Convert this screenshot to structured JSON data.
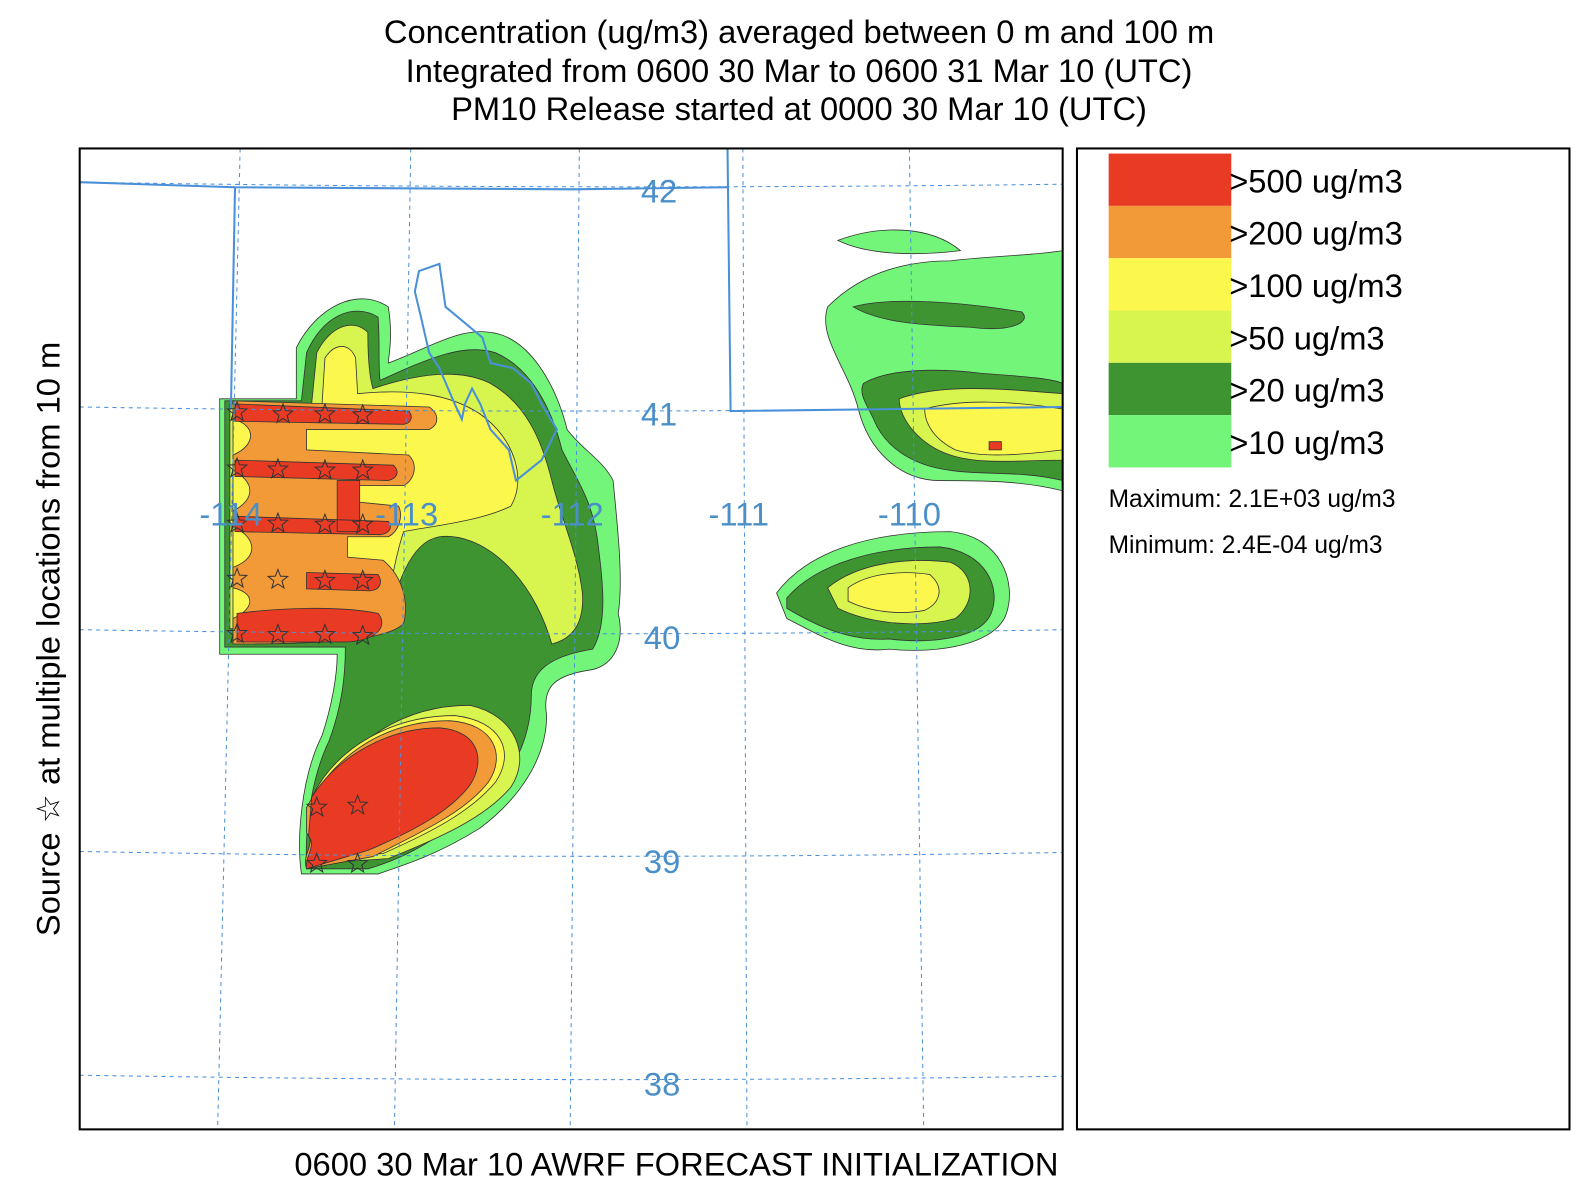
{
  "title": [
    "Concentration  (ug/m3) averaged between     0 m and   100 m",
    "Integrated from 0600 30 Mar to 0600 31 Mar 10 (UTC)",
    "PM10 Release started at 0000 30 Mar 10 (UTC)"
  ],
  "side_label": "Source ☆  at multiple locations   from   10 m",
  "footer": "0600 30 Mar 10 AWRF FORECAST INITIALIZATION",
  "map": {
    "latitude_labels": [
      "42",
      "41",
      "40",
      "39",
      "38"
    ],
    "longitude_labels": [
      "-114",
      "-113",
      "-112",
      "-111",
      "-110"
    ]
  },
  "legend": {
    "levels": [
      {
        "label": ">500 ug/m3",
        "color": "#e93a24"
      },
      {
        "label": ">200 ug/m3",
        "color": "#f19a37"
      },
      {
        "label": ">100 ug/m3",
        "color": "#fbf74d"
      },
      {
        "label": ">50 ug/m3",
        "color": "#d8f54f"
      },
      {
        "label": ">20 ug/m3",
        "color": "#3f9432"
      },
      {
        "label": ">10 ug/m3",
        "color": "#73f57a"
      }
    ],
    "maximum": "Maximum: 2.1E+03 ug/m3",
    "minimum": "Minimum: 2.4E-04 ug/m3"
  }
}
